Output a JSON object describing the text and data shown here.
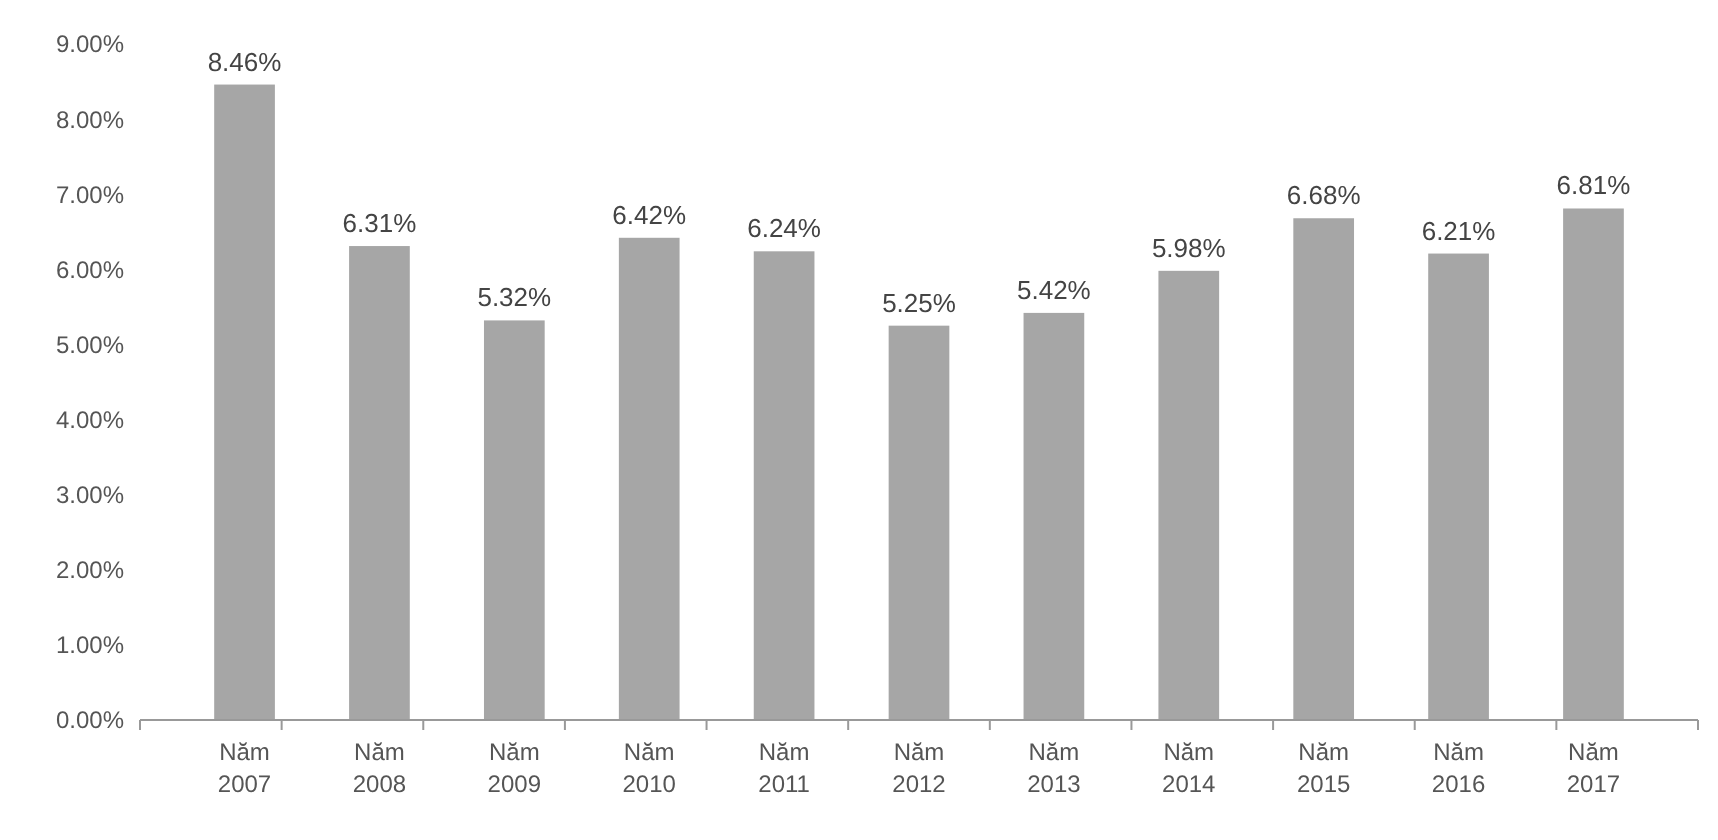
{
  "chart_data": {
    "type": "bar",
    "categories": [
      "Năm 2007",
      "Năm 2008",
      "Năm 2009",
      "Năm 2010",
      "Năm 2011",
      "Năm 2012",
      "Năm 2013",
      "Năm 2014",
      "Năm 2015",
      "Năm 2016",
      "Năm 2017"
    ],
    "values": [
      8.46,
      6.31,
      5.32,
      6.42,
      6.24,
      5.25,
      5.42,
      5.98,
      6.68,
      6.21,
      6.81
    ],
    "value_labels": [
      "8.46%",
      "6.31%",
      "5.32%",
      "6.42%",
      "6.24%",
      "5.25%",
      "5.42%",
      "5.98%",
      "6.68%",
      "6.21%",
      "6.81%"
    ],
    "color": "#a6a6a6",
    "ylim": [
      0,
      9
    ],
    "yticks": [
      {
        "value": 0,
        "label": "0.00%"
      },
      {
        "value": 1,
        "label": "1.00%"
      },
      {
        "value": 2,
        "label": "2.00%"
      },
      {
        "value": 3,
        "label": "3.00%"
      },
      {
        "value": 4,
        "label": "4.00%"
      },
      {
        "value": 5,
        "label": "5.00%"
      },
      {
        "value": 6,
        "label": "6.00%"
      },
      {
        "value": 7,
        "label": "7.00%"
      },
      {
        "value": 8,
        "label": "8.00%"
      },
      {
        "value": 9,
        "label": "9.00%"
      }
    ],
    "grid": false
  }
}
